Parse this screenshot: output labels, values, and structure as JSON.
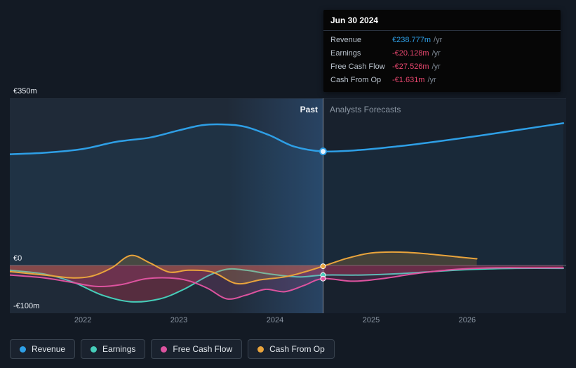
{
  "colors": {
    "page_bg": "#131a24",
    "past_bg": "#1f2a38",
    "forecast_bg": "#18212d",
    "highlight": "#3b74b4",
    "divider": "#96a3b2",
    "grid_major": "#5a6673",
    "grid_minor": "#2a3442",
    "axis_text": "#8b96a3",
    "revenue_blue": "#2e9fe6",
    "earnings_teal": "#46cdb9",
    "fcf_pink": "#dd539f",
    "cashop_orange": "#e9a43c",
    "negative_red": "#e8476f"
  },
  "labels": {
    "past": "Past",
    "forecast": "Analysts Forecasts"
  },
  "tooltip": {
    "date": "Jun 30 2024",
    "rows": [
      {
        "label": "Revenue",
        "value": "€238.777m",
        "suffix": "/yr",
        "color": "#2e9fe6"
      },
      {
        "label": "Earnings",
        "value": "-€20.128m",
        "suffix": "/yr",
        "color": "#e8476f"
      },
      {
        "label": "Free Cash Flow",
        "value": "-€27.526m",
        "suffix": "/yr",
        "color": "#e8476f"
      },
      {
        "label": "Cash From Op",
        "value": "-€1.631m",
        "suffix": "/yr",
        "color": "#e8476f"
      }
    ]
  },
  "legend": [
    {
      "label": "Revenue",
      "color": "#2e9fe6"
    },
    {
      "label": "Earnings",
      "color": "#46cdb9"
    },
    {
      "label": "Free Cash Flow",
      "color": "#dd539f"
    },
    {
      "label": "Cash From Op",
      "color": "#e9a43c"
    }
  ],
  "chart_data": {
    "type": "line",
    "unit": "EUR millions per year",
    "xlim": [
      2021.24,
      2027.03
    ],
    "ylim": [
      -100,
      350
    ],
    "divider_x": 2024.5,
    "divider_date": "Jun 30 2024",
    "highlight_range": [
      2023.5,
      2024.5
    ],
    "gridlines": [
      350,
      0
    ],
    "x_tick_values": [
      2022,
      2023,
      2024,
      2025,
      2026
    ],
    "x_tick_labels": [
      "2022",
      "2023",
      "2024",
      "2025",
      "2026"
    ],
    "y_tick_values": [
      350,
      0,
      -100
    ],
    "y_tick_labels": [
      "€350m",
      "€0",
      "-€100m"
    ],
    "legend_position": "bottom",
    "series": [
      {
        "name": "Revenue",
        "color": "#2e9fe6",
        "width": 2.5,
        "fill": "rgba(46,159,230,0.07)",
        "marker": "hollow",
        "marker_value": 238.777,
        "points": [
          [
            2021.24,
            233
          ],
          [
            2021.6,
            236
          ],
          [
            2022.0,
            244
          ],
          [
            2022.35,
            259
          ],
          [
            2022.7,
            268
          ],
          [
            2023.0,
            283
          ],
          [
            2023.25,
            294
          ],
          [
            2023.5,
            295
          ],
          [
            2023.7,
            290
          ],
          [
            2023.95,
            272
          ],
          [
            2024.2,
            249
          ],
          [
            2024.5,
            238.777
          ],
          [
            2024.9,
            242
          ],
          [
            2025.3,
            250
          ],
          [
            2025.7,
            260
          ],
          [
            2026.1,
            271
          ],
          [
            2026.5,
            283
          ],
          [
            2027.0,
            298
          ]
        ]
      },
      {
        "name": "Earnings",
        "color": "#46cdb9",
        "width": 2,
        "fill": "rgba(201,54,78,0.32)",
        "marker": "dot",
        "marker_value": -20.128,
        "points": [
          [
            2021.24,
            -10
          ],
          [
            2021.6,
            -18
          ],
          [
            2021.9,
            -35
          ],
          [
            2022.2,
            -62
          ],
          [
            2022.5,
            -76
          ],
          [
            2022.8,
            -70
          ],
          [
            2023.05,
            -50
          ],
          [
            2023.3,
            -22
          ],
          [
            2023.5,
            -8
          ],
          [
            2023.7,
            -10
          ],
          [
            2023.95,
            -18
          ],
          [
            2024.25,
            -24
          ],
          [
            2024.5,
            -20.128
          ],
          [
            2024.9,
            -20
          ],
          [
            2025.3,
            -17
          ],
          [
            2025.7,
            -12
          ],
          [
            2026.1,
            -8
          ],
          [
            2026.5,
            -6
          ],
          [
            2027.0,
            -6
          ]
        ]
      },
      {
        "name": "Free Cash Flow",
        "color": "#dd539f",
        "width": 2,
        "fill": "rgba(221,83,159,0.16)",
        "marker": "dot",
        "marker_value": -27.526,
        "points": [
          [
            2021.24,
            -20
          ],
          [
            2021.6,
            -26
          ],
          [
            2021.9,
            -36
          ],
          [
            2022.15,
            -44
          ],
          [
            2022.4,
            -40
          ],
          [
            2022.65,
            -28
          ],
          [
            2022.9,
            -26
          ],
          [
            2023.1,
            -32
          ],
          [
            2023.3,
            -48
          ],
          [
            2023.5,
            -70
          ],
          [
            2023.7,
            -62
          ],
          [
            2023.9,
            -50
          ],
          [
            2024.1,
            -55
          ],
          [
            2024.3,
            -42
          ],
          [
            2024.5,
            -27.526
          ],
          [
            2024.8,
            -33
          ],
          [
            2025.1,
            -28
          ],
          [
            2025.5,
            -16
          ],
          [
            2025.9,
            -8
          ],
          [
            2026.3,
            -5
          ],
          [
            2026.7,
            -5
          ],
          [
            2027.0,
            -5
          ]
        ]
      },
      {
        "name": "Cash From Op",
        "color": "#e9a43c",
        "width": 2,
        "fill": "rgba(233,164,60,0.20)",
        "marker": "dot",
        "marker_value": -1.631,
        "points": [
          [
            2021.24,
            -13
          ],
          [
            2021.6,
            -20
          ],
          [
            2021.9,
            -26
          ],
          [
            2022.1,
            -22
          ],
          [
            2022.3,
            -5
          ],
          [
            2022.5,
            21
          ],
          [
            2022.7,
            5
          ],
          [
            2022.9,
            -14
          ],
          [
            2023.1,
            -10
          ],
          [
            2023.35,
            -14
          ],
          [
            2023.6,
            -38
          ],
          [
            2023.85,
            -30
          ],
          [
            2024.1,
            -24
          ],
          [
            2024.3,
            -14
          ],
          [
            2024.5,
            -1.631
          ],
          [
            2024.75,
            15
          ],
          [
            2025.0,
            26
          ],
          [
            2025.3,
            28
          ],
          [
            2025.6,
            24
          ],
          [
            2025.9,
            18
          ],
          [
            2026.1,
            14
          ]
        ]
      }
    ]
  }
}
